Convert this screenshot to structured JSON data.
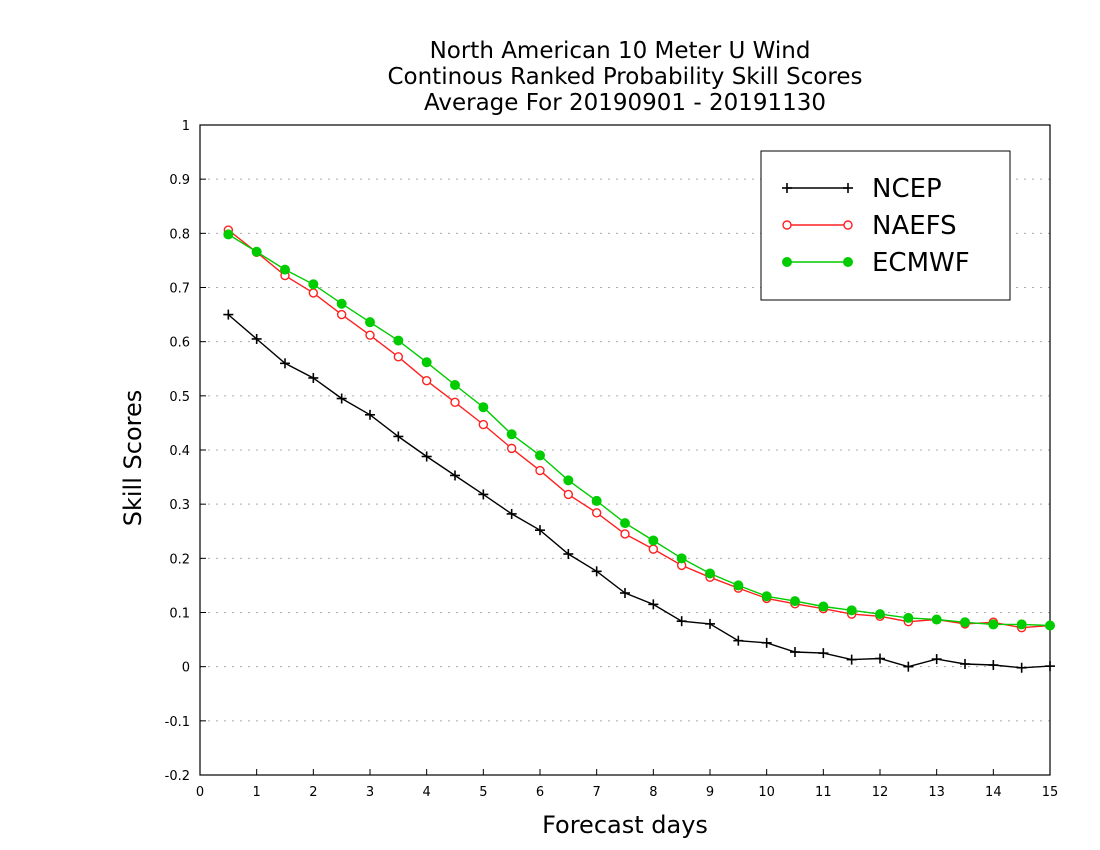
{
  "chart_data": {
    "type": "line",
    "title": [
      "North American 10 Meter U Wind",
      "Continous Ranked Probability Skill Scores",
      "Average For 20190901 - 20191130"
    ],
    "xlabel": "Forecast days",
    "ylabel": "Skill Scores",
    "xlim": [
      0,
      15
    ],
    "ylim": [
      -0.2,
      1
    ],
    "xticks": [
      "0",
      "1",
      "2",
      "3",
      "4",
      "5",
      "6",
      "7",
      "8",
      "9",
      "10",
      "11",
      "12",
      "13",
      "14",
      "15"
    ],
    "yticks": [
      "-0.2",
      "-0.1",
      "0",
      "0.1",
      "0.2",
      "0.3",
      "0.4",
      "0.5",
      "0.6",
      "0.7",
      "0.8",
      "0.9",
      "1"
    ],
    "grid": "horizontal dotted",
    "legend_position": "top-right",
    "x": [
      0.5,
      1.0,
      1.5,
      2.0,
      2.5,
      3.0,
      3.5,
      4.0,
      4.5,
      5.0,
      5.5,
      6.0,
      6.5,
      7.0,
      7.5,
      8.0,
      8.5,
      9.0,
      9.5,
      10.0,
      10.5,
      11.0,
      11.5,
      12.0,
      12.5,
      13.0,
      13.5,
      14.0,
      14.5,
      15.0
    ],
    "series": [
      {
        "name": "NCEP",
        "color": "#000000",
        "marker": "plus",
        "values": [
          0.65,
          0.605,
          0.56,
          0.533,
          0.495,
          0.465,
          0.425,
          0.388,
          0.353,
          0.318,
          0.282,
          0.252,
          0.208,
          0.176,
          0.136,
          0.115,
          0.084,
          0.079,
          0.048,
          0.044,
          0.027,
          0.025,
          0.013,
          0.015,
          0.0,
          0.014,
          0.005,
          0.003,
          -0.002,
          0.001
        ]
      },
      {
        "name": "NAEFS",
        "color": "#ff2020",
        "marker": "open-circle",
        "values": [
          0.806,
          0.765,
          0.722,
          0.69,
          0.65,
          0.612,
          0.572,
          0.528,
          0.488,
          0.447,
          0.403,
          0.362,
          0.318,
          0.284,
          0.245,
          0.217,
          0.187,
          0.165,
          0.145,
          0.126,
          0.116,
          0.107,
          0.097,
          0.093,
          0.083,
          0.087,
          0.079,
          0.082,
          0.072,
          0.076
        ]
      },
      {
        "name": "ECMWF",
        "color": "#00cc00",
        "marker": "filled-circle",
        "values": [
          0.798,
          0.766,
          0.733,
          0.706,
          0.67,
          0.636,
          0.602,
          0.562,
          0.52,
          0.479,
          0.429,
          0.39,
          0.344,
          0.306,
          0.265,
          0.233,
          0.2,
          0.172,
          0.15,
          0.13,
          0.121,
          0.111,
          0.104,
          0.097,
          0.09,
          0.087,
          0.082,
          0.078,
          0.078,
          0.076
        ]
      }
    ]
  }
}
